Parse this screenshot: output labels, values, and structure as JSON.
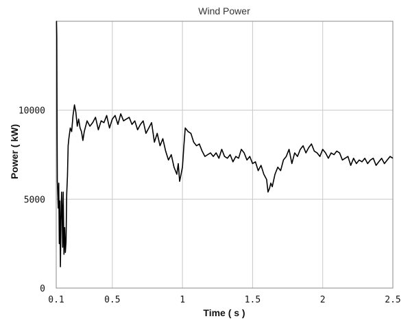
{
  "chart_data": {
    "type": "line",
    "title": "Wind Power",
    "xlabel": "Time ( s )",
    "ylabel": "Power ( kW)",
    "xlim": [
      0.1,
      2.5
    ],
    "ylim": [
      0,
      15000
    ],
    "grid": true,
    "x_ticks": [
      {
        "value": 0.1,
        "label": "0.1"
      },
      {
        "value": 0.5,
        "label": "0.5"
      },
      {
        "value": 1,
        "label": "1"
      },
      {
        "value": 1.5,
        "label": "1.5"
      },
      {
        "value": 2,
        "label": "2"
      },
      {
        "value": 2.5,
        "label": "2.5"
      }
    ],
    "y_ticks": [
      {
        "value": 0,
        "label": "0"
      },
      {
        "value": 5000,
        "label": "5000"
      },
      {
        "value": 10000,
        "label": "10000"
      }
    ],
    "series": [
      {
        "color": "#000000",
        "x": [
          0.1,
          0.102,
          0.104,
          0.106,
          0.108,
          0.11,
          0.114,
          0.118,
          0.122,
          0.126,
          0.13,
          0.134,
          0.138,
          0.142,
          0.146,
          0.15,
          0.155,
          0.16,
          0.165,
          0.17,
          0.175,
          0.18,
          0.185,
          0.19,
          0.2,
          0.21,
          0.22,
          0.23,
          0.24,
          0.25,
          0.26,
          0.27,
          0.28,
          0.29,
          0.3,
          0.32,
          0.34,
          0.36,
          0.38,
          0.4,
          0.42,
          0.44,
          0.46,
          0.48,
          0.5,
          0.52,
          0.54,
          0.56,
          0.58,
          0.6,
          0.62,
          0.64,
          0.66,
          0.68,
          0.7,
          0.72,
          0.74,
          0.76,
          0.78,
          0.8,
          0.82,
          0.84,
          0.86,
          0.88,
          0.9,
          0.92,
          0.94,
          0.96,
          0.97,
          0.98,
          0.99,
          1.0,
          1.01,
          1.02,
          1.04,
          1.06,
          1.08,
          1.1,
          1.12,
          1.14,
          1.16,
          1.18,
          1.2,
          1.22,
          1.24,
          1.26,
          1.28,
          1.3,
          1.32,
          1.34,
          1.36,
          1.38,
          1.4,
          1.42,
          1.44,
          1.46,
          1.48,
          1.5,
          1.52,
          1.54,
          1.56,
          1.58,
          1.6,
          1.61,
          1.62,
          1.63,
          1.64,
          1.66,
          1.68,
          1.7,
          1.72,
          1.74,
          1.76,
          1.78,
          1.8,
          1.82,
          1.84,
          1.86,
          1.88,
          1.9,
          1.92,
          1.94,
          1.96,
          1.98,
          2.0,
          2.02,
          2.04,
          2.06,
          2.08,
          2.1,
          2.12,
          2.14,
          2.16,
          2.18,
          2.2,
          2.22,
          2.24,
          2.26,
          2.28,
          2.3,
          2.32,
          2.34,
          2.36,
          2.38,
          2.4,
          2.42,
          2.44,
          2.46,
          2.48,
          2.5
        ],
        "y": [
          15000,
          15000,
          14200,
          9500,
          6000,
          5600,
          4500,
          5900,
          2500,
          4900,
          1200,
          3800,
          5400,
          4300,
          2300,
          5400,
          1900,
          3400,
          2000,
          2600,
          5300,
          6300,
          8000,
          8400,
          9000,
          8800,
          9700,
          10300,
          9900,
          9100,
          9500,
          9000,
          8800,
          8300,
          8800,
          9400,
          9100,
          9300,
          9600,
          8900,
          9400,
          9300,
          9700,
          9000,
          9500,
          9700,
          9200,
          9800,
          9400,
          9500,
          9600,
          9200,
          9400,
          8900,
          9200,
          9400,
          8700,
          9000,
          9300,
          8200,
          8700,
          8000,
          8400,
          7700,
          7200,
          7500,
          6800,
          6400,
          7000,
          6000,
          6400,
          6800,
          8000,
          9000,
          8800,
          8700,
          8200,
          8000,
          8100,
          7700,
          7400,
          7500,
          7600,
          7400,
          7600,
          7300,
          7800,
          7400,
          7300,
          7500,
          7100,
          7400,
          7300,
          7800,
          7600,
          7200,
          7400,
          7000,
          7100,
          6600,
          6900,
          6400,
          6100,
          5400,
          5600,
          5900,
          5700,
          6400,
          6800,
          6600,
          7200,
          7400,
          7800,
          7000,
          7600,
          7400,
          7800,
          8000,
          7600,
          7900,
          8100,
          7700,
          7600,
          7400,
          7800,
          7600,
          7300,
          7600,
          7500,
          7700,
          7600,
          7200,
          7300,
          7400,
          6900,
          7300,
          7000,
          7200,
          7100,
          7300,
          7000,
          7200,
          7300,
          6900,
          7100,
          7300,
          7000,
          7200,
          7400,
          7300
        ]
      }
    ]
  }
}
